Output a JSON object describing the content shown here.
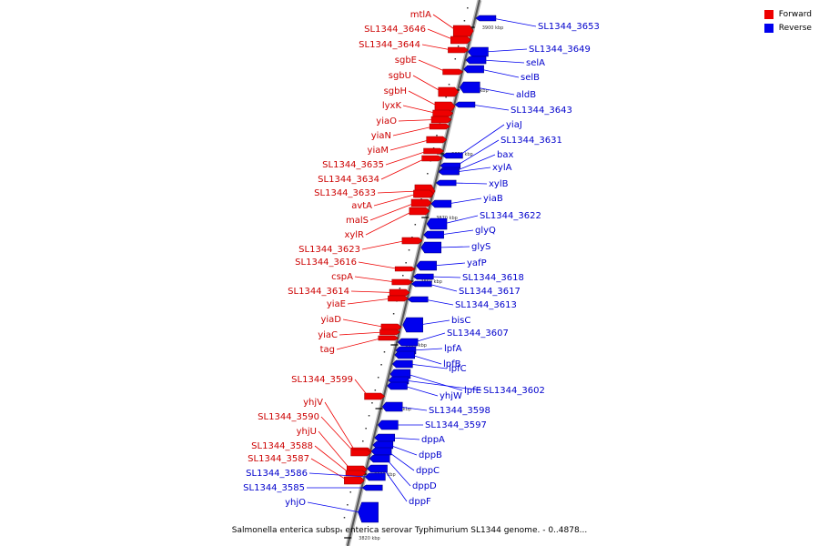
{
  "caption": "Salmonella enterica subsp. enterica serovar Typhimurium SL1344 genome. - 0..4878...",
  "legend": [
    {
      "label": "Forward",
      "color": "#ee0000"
    },
    {
      "label": "Reverse",
      "color": "#0000ee"
    }
  ],
  "colors": {
    "forward": "#ee0000",
    "reverse": "#0000ee",
    "forward_label": "#cc0000",
    "reverse_label": "#0000cc",
    "backbone": "#888888"
  },
  "scale_labels": [
    "3900 kbp",
    "3890 kbp",
    "3880 kbp",
    "3870 kbp",
    "3860 kbp",
    "3850 kbp",
    "3840 kbp",
    "3830 kbp",
    "3820 kbp"
  ],
  "forward_genes": [
    "mtlA",
    "SL1344_3646",
    "SL1344_3644",
    "sgbE",
    "sgbU",
    "sgbH",
    "lyxK",
    "yiaO",
    "yiaN",
    "yiaM",
    "SL1344_3635",
    "SL1344_3634",
    "SL1344_3633",
    "avtA",
    "malS",
    "xylR",
    "SL1344_3623",
    "SL1344_3616",
    "cspA",
    "SL1344_3614",
    "yiaE",
    "yiaD",
    "yiaC",
    "tag",
    "SL1344_3599",
    "yhjV",
    "SL1344_3590",
    "yhjU",
    "SL1344_3588",
    "SL1344_3587"
  ],
  "reverse_genes": [
    "SL1344_3653",
    "SL1344_3649",
    "selA",
    "selB",
    "aldB",
    "SL1344_3643",
    "yiaJ",
    "SL1344_3631",
    "bax",
    "xylA",
    "xylB",
    "yiaB",
    "SL1344_3622",
    "glyQ",
    "glyS",
    "yafP",
    "SL1344_3618",
    "SL1344_3617",
    "SL1344_3613",
    "bisC",
    "SL1344_3607",
    "lpfA",
    "lpfB",
    "lpfC",
    "lpfE",
    "SL1344_3602",
    "yhjW",
    "SL1344_3598",
    "SL1344_3597",
    "dppA",
    "dppB",
    "dppC",
    "dppD",
    "dppF",
    "SL1344_3586",
    "SL1344_3585",
    "yhjO"
  ]
}
